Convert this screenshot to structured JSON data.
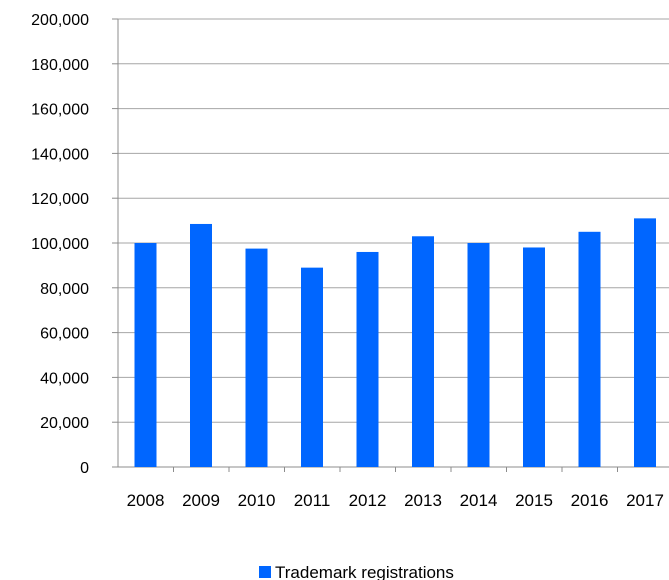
{
  "chart_data": {
    "type": "bar",
    "categories": [
      "2008",
      "2009",
      "2010",
      "2011",
      "2012",
      "2013",
      "2014",
      "2015",
      "2016",
      "2017"
    ],
    "series": [
      {
        "name": "Trademark registrations",
        "values": [
          100000,
          108500,
          97500,
          89000,
          96000,
          103000,
          100000,
          98000,
          105000,
          111000
        ]
      }
    ],
    "ylim": [
      0,
      200000
    ],
    "yticks": [
      "0",
      "20,000",
      "40,000",
      "60,000",
      "80,000",
      "100,000",
      "120,000",
      "140,000",
      "160,000",
      "180,000",
      "200,000"
    ],
    "ytick_values": [
      0,
      20000,
      40000,
      60000,
      80000,
      100000,
      120000,
      140000,
      160000,
      180000,
      200000
    ],
    "grid": true,
    "legend_position": "bottom",
    "colors": {
      "bar": "#0066ff",
      "grid": "#a6a6a6",
      "axis": "#8c8c8c"
    }
  }
}
